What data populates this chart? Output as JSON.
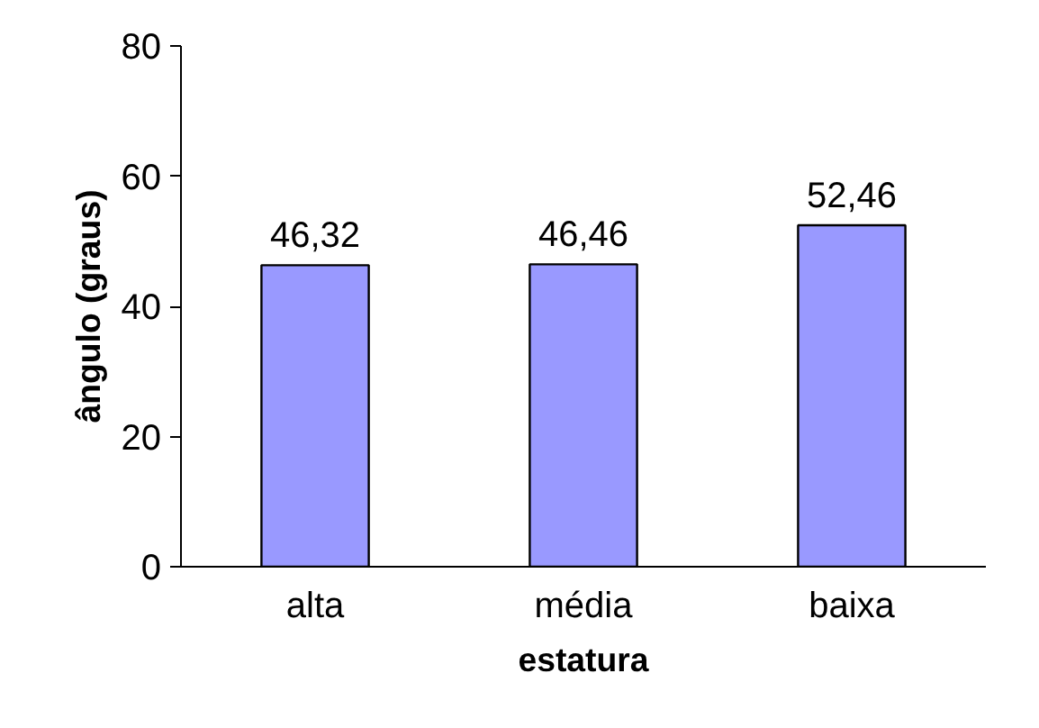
{
  "chart_data": {
    "type": "bar",
    "xlabel": "estatura",
    "ylabel": "ângulo (graus)",
    "categories": [
      "alta",
      "média",
      "baixa"
    ],
    "values": [
      46.32,
      46.46,
      52.46
    ],
    "value_labels": [
      "46,32",
      "46,46",
      "52,46"
    ],
    "color": "#9999ff",
    "ylim": [
      0,
      80
    ],
    "yticks": [
      0,
      20,
      40,
      60,
      80
    ],
    "grid": false
  }
}
